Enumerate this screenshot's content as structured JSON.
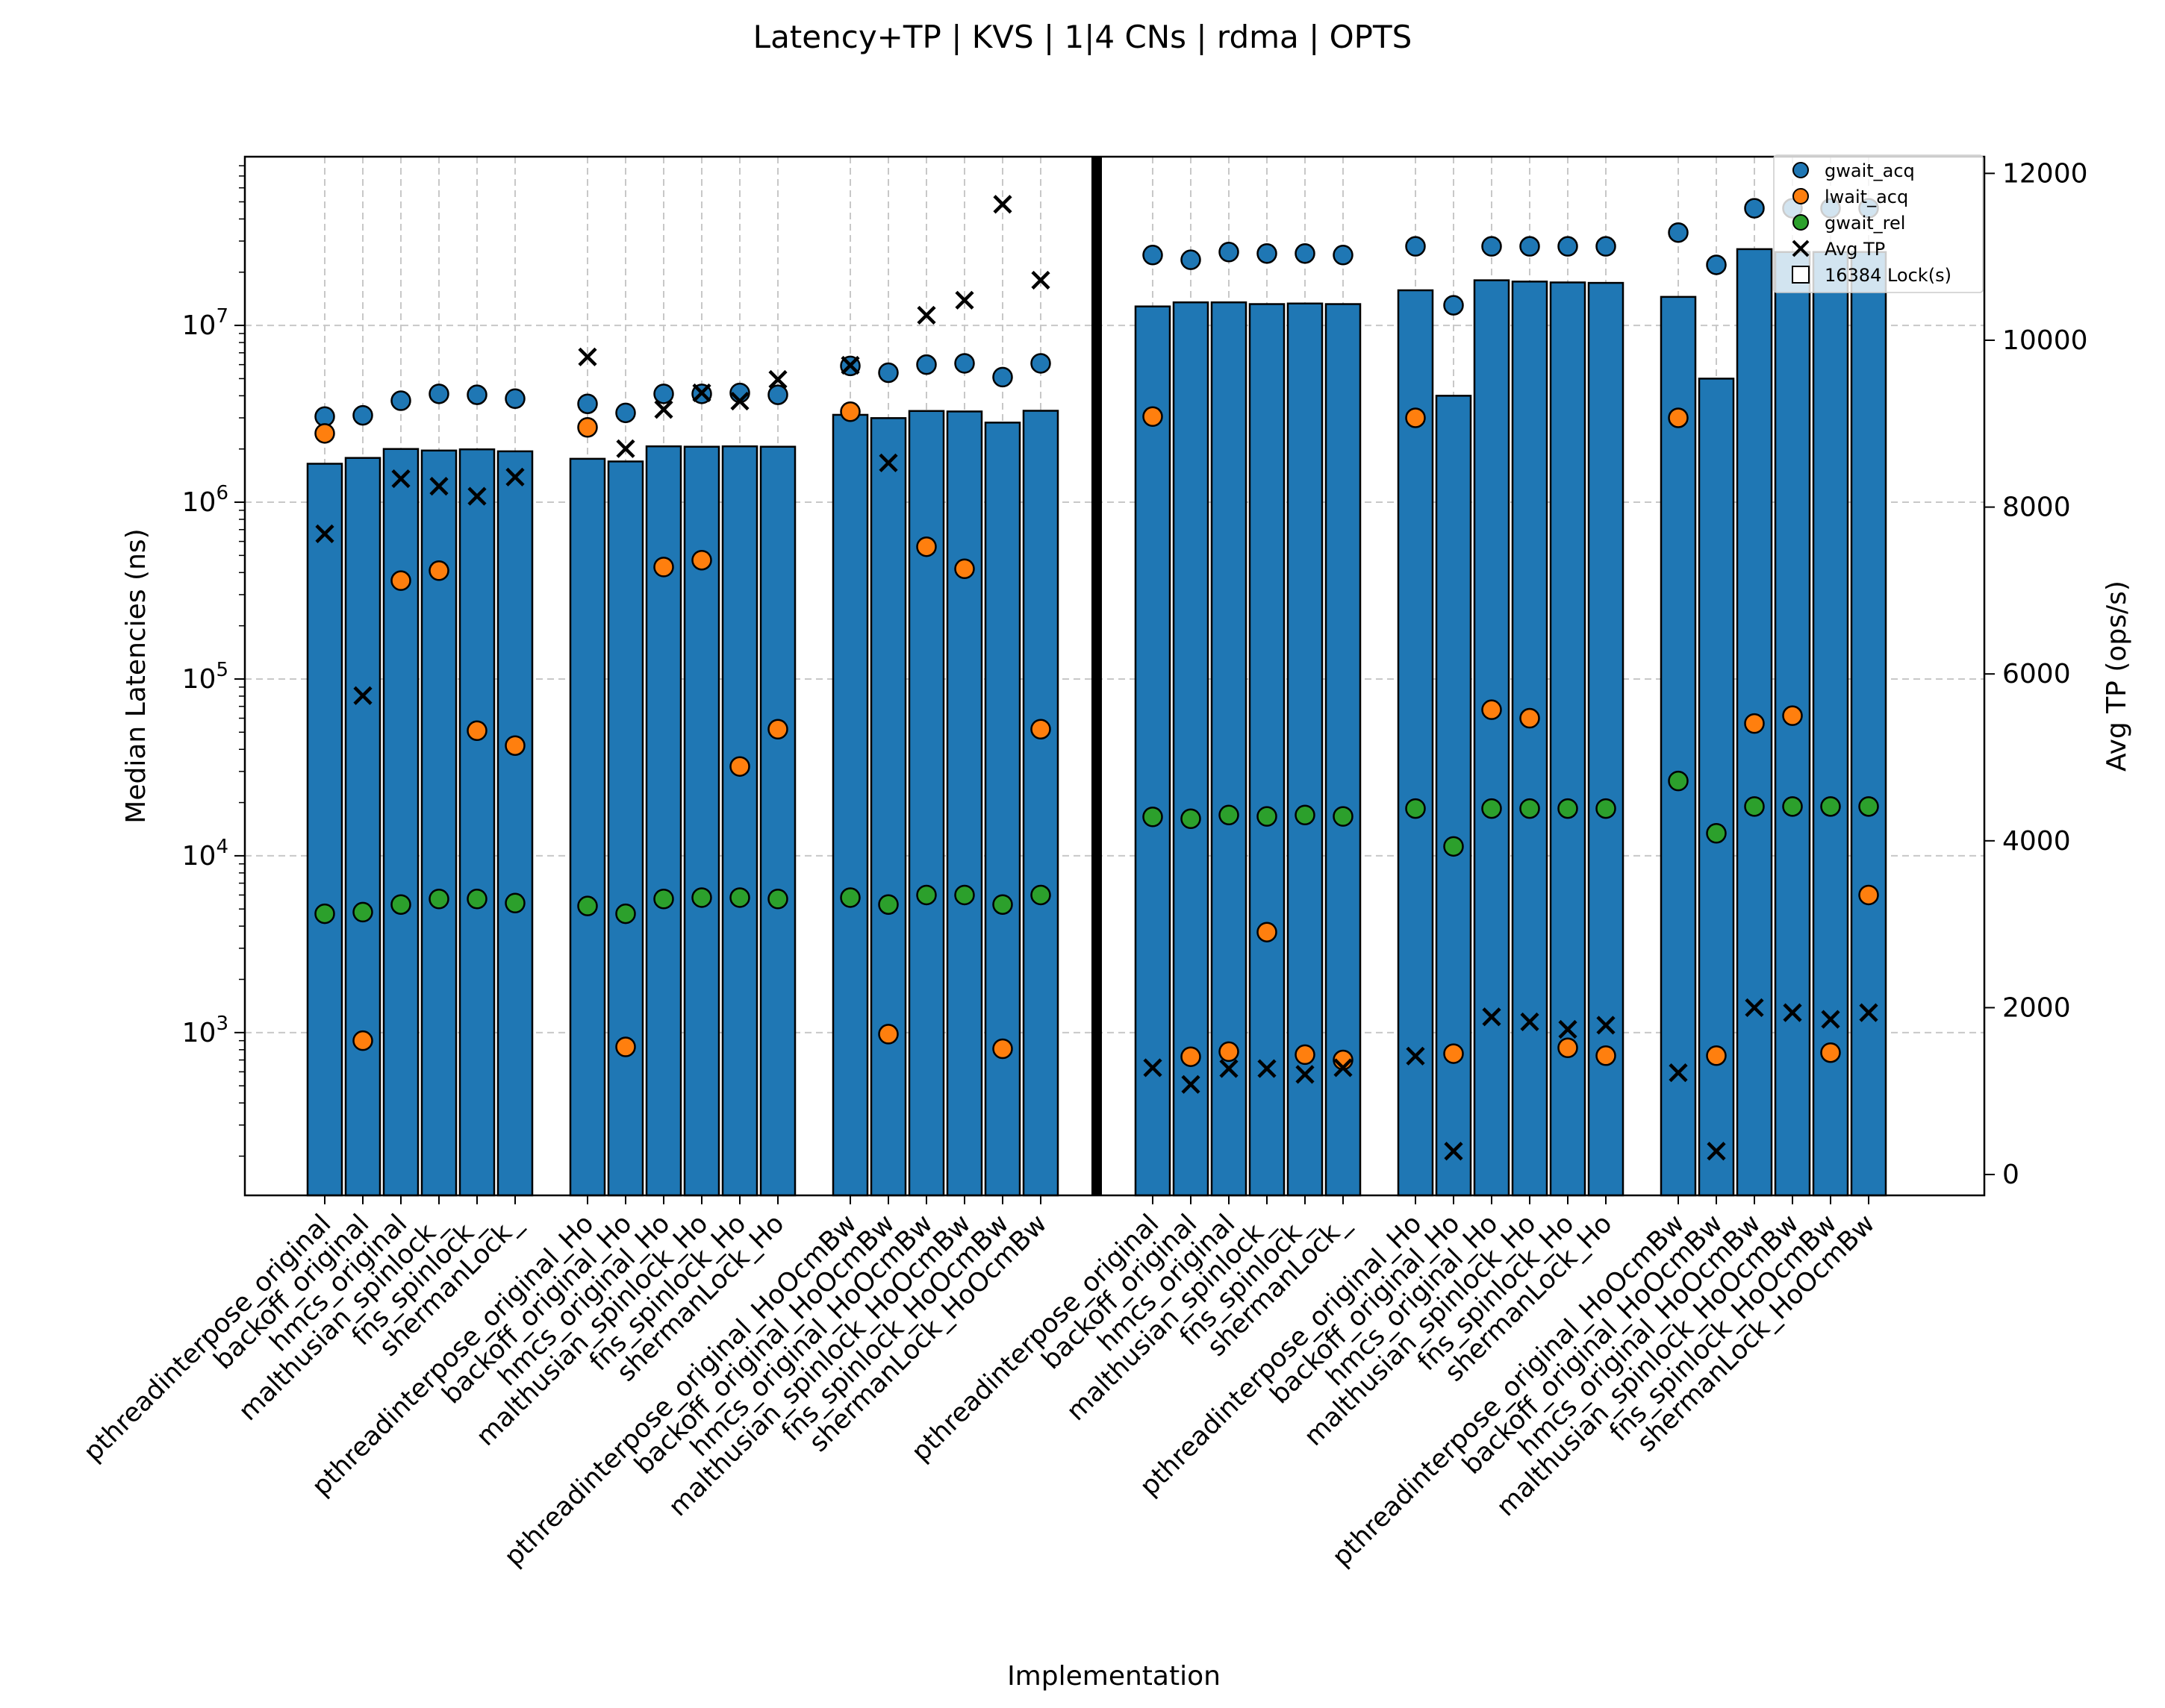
{
  "chart_data": {
    "type": "bar",
    "title": "Latency+TP | KVS | 1|4 CNs | rdma | OPTS",
    "xlabel": "Implementation",
    "ylabel": "Median Latencies (ns)",
    "y2label": "Avg TP (ops/s)",
    "y_scale": "log",
    "ylim": [
      120,
      90000000
    ],
    "y2lim": [
      -250,
      12200
    ],
    "y_ticks": [
      {
        "value": 1000,
        "base": "10",
        "exp": "3"
      },
      {
        "value": 10000,
        "base": "10",
        "exp": "4"
      },
      {
        "value": 100000,
        "base": "10",
        "exp": "5"
      },
      {
        "value": 1000000,
        "base": "10",
        "exp": "6"
      },
      {
        "value": 10000000,
        "base": "10",
        "exp": "7"
      }
    ],
    "y2_ticks": [
      "0",
      "2000",
      "4000",
      "6000",
      "8000",
      "10000",
      "12000"
    ],
    "grid": true,
    "legend_position": "top-right",
    "legend": {
      "gwait_acq": "gwait_acq",
      "lwait_acq": "lwait_acq",
      "gwait_rel": "gwait_rel",
      "avg_tp": "Avg TP",
      "bar": "16384 Lock(s)"
    },
    "colors": {
      "bar": "#1f77b4",
      "gwait_acq": "#1f77b4",
      "lwait_acq": "#ff7f0e",
      "gwait_rel": "#2ca02c",
      "avg_tp": "#000000",
      "grid": "#c8c8c8"
    },
    "categories": [
      "pthreadinterpose_original",
      "backoff_original",
      "hmcs_original",
      "malthusian_spinlock_",
      "fns_spinlock_",
      "shermanLock_",
      "pthreadinterpose_original_Ho",
      "backoff_original_Ho",
      "hmcs_original_Ho",
      "malthusian_spinlock_Ho",
      "fns_spinlock_Ho",
      "shermanLock_Ho",
      "pthreadinterpose_original_HoOcmBw",
      "backoff_original_HoOcmBw",
      "hmcs_original_HoOcmBw",
      "malthusian_spinlock_HoOcmBw",
      "fns_spinlock_HoOcmBw",
      "shermanLock_HoOcmBw",
      "pthreadinterpose_original",
      "backoff_original",
      "hmcs_original",
      "malthusian_spinlock_",
      "fns_spinlock_",
      "shermanLock_",
      "pthreadinterpose_original_Ho",
      "backoff_original_Ho",
      "hmcs_original_Ho",
      "malthusian_spinlock_Ho",
      "fns_spinlock_Ho",
      "shermanLock_Ho",
      "pthreadinterpose_original_HoOcmBw",
      "backoff_original_HoOcmBw",
      "hmcs_original_HoOcmBw",
      "malthusian_spinlock_HoOcmBw",
      "fns_spinlock_HoOcmBw",
      "shermanLock_HoOcmBw"
    ],
    "bar_values": [
      1650000,
      1780000,
      2000000,
      1960000,
      1990000,
      1940000,
      1760000,
      1700000,
      2070000,
      2060000,
      2070000,
      2060000,
      3120000,
      2990000,
      3280000,
      3260000,
      2820000,
      3290000,
      12800000,
      13500000,
      13500000,
      13200000,
      13300000,
      13200000,
      15800000,
      4000000,
      18000000,
      17700000,
      17500000,
      17400000,
      14500000,
      5000000,
      27000000,
      26000000,
      26000000,
      26000000
    ],
    "series": [
      {
        "name": "gwait_acq",
        "axis": "left",
        "values": [
          3050000,
          3100000,
          3750000,
          4100000,
          4050000,
          3850000,
          3600000,
          3200000,
          4100000,
          4100000,
          4150000,
          4050000,
          5900000,
          5400000,
          6000000,
          6100000,
          5100000,
          6100000,
          25000000,
          23500000,
          26000000,
          25500000,
          25500000,
          25000000,
          28000000,
          13000000,
          28000000,
          28000000,
          28000000,
          28000000,
          33500000,
          22000000,
          46000000,
          46000000,
          46000000,
          46000000
        ]
      },
      {
        "name": "lwait_acq",
        "axis": "left",
        "values": [
          2450000,
          900,
          360000,
          410000,
          51000,
          42000,
          2650000,
          830,
          430000,
          470000,
          32000,
          52000,
          3250000,
          980,
          560000,
          420000,
          810,
          52000,
          3050000,
          730,
          780,
          3700,
          750,
          700,
          3000000,
          760,
          67000,
          60000,
          820,
          740,
          3000000,
          740,
          56000,
          62000,
          770,
          6000
        ]
      },
      {
        "name": "gwait_rel",
        "axis": "left",
        "values": [
          4700,
          4800,
          5300,
          5700,
          5700,
          5400,
          5200,
          4700,
          5700,
          5800,
          5800,
          5700,
          5800,
          5300,
          6000,
          6000,
          5300,
          6000,
          16600,
          16200,
          17000,
          16700,
          17000,
          16700,
          18500,
          11300,
          18500,
          18500,
          18500,
          18500,
          26500,
          13400,
          19000,
          19000,
          19000,
          19000
        ]
      },
      {
        "name": "Avg TP",
        "axis": "right",
        "values": [
          7680,
          5740,
          8340,
          8250,
          8130,
          8360,
          9800,
          8700,
          9170,
          9370,
          9270,
          9530,
          9700,
          8530,
          10300,
          10480,
          11630,
          10720,
          1280,
          1080,
          1270,
          1270,
          1200,
          1280,
          1420,
          280,
          1890,
          1830,
          1740,
          1790,
          1220,
          280,
          2000,
          1940,
          1860,
          1940
        ]
      }
    ]
  }
}
